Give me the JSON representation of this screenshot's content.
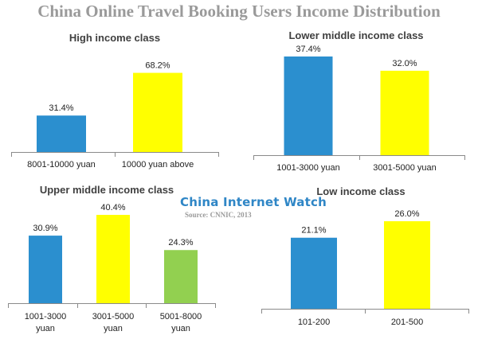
{
  "title": "China Online Travel Booking Users Income Distribution",
  "watermark": {
    "brand": "China Internet Watch",
    "source": "Source: CNNIC, 2013"
  },
  "colors": {
    "blue": "#2b8fcf",
    "yellow": "#ffff00",
    "green": "#92d050"
  },
  "chart_data": [
    {
      "type": "bar",
      "title": "High income class",
      "categories": [
        "8001-10000 yuan",
        "10000 yuan above"
      ],
      "values": [
        31.4,
        68.2
      ],
      "value_labels": [
        "31.4%",
        "68.2%"
      ],
      "colors": [
        "#2b8fcf",
        "#ffff00"
      ],
      "ylim": [
        0,
        72
      ],
      "grid": false
    },
    {
      "type": "bar",
      "title": "Lower middle income class",
      "categories": [
        "1001-3000 yuan",
        "3001-5000 yuan"
      ],
      "values": [
        37.4,
        32.0
      ],
      "value_labels": [
        "37.4%",
        "32.0%"
      ],
      "colors": [
        "#2b8fcf",
        "#ffff00"
      ],
      "ylim": [
        0,
        37.4
      ],
      "grid": false
    },
    {
      "type": "bar",
      "title": "Upper middle income class",
      "categories": [
        "1001-3000 yuan",
        "3001-5000 yuan",
        "5001-8000 yuan"
      ],
      "category_lines": [
        [
          "1001-3000",
          "yuan"
        ],
        [
          "3001-5000",
          "yuan"
        ],
        [
          "5001-8000",
          "yuan"
        ]
      ],
      "values": [
        30.9,
        40.4,
        24.3
      ],
      "value_labels": [
        "30.9%",
        "40.4%",
        "24.3%"
      ],
      "colors": [
        "#2b8fcf",
        "#ffff00",
        "#92d050"
      ],
      "ylim": [
        0,
        40.4
      ],
      "grid": false
    },
    {
      "type": "bar",
      "title": "Low income class",
      "categories": [
        "101-200",
        "201-500"
      ],
      "values": [
        21.1,
        26.0
      ],
      "value_labels": [
        "21.1%",
        "26.0%"
      ],
      "colors": [
        "#2b8fcf",
        "#ffff00"
      ],
      "ylim": [
        0,
        26.0
      ],
      "grid": false
    }
  ]
}
